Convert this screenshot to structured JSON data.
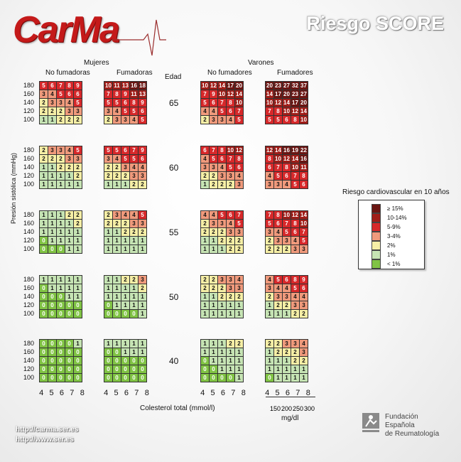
{
  "brand": {
    "logo_text": "CarMa"
  },
  "title": "Riesgo SCORE",
  "headers": {
    "women": "Mujeres",
    "men": "Varones",
    "nonsmokers": "No fumadoras",
    "smokers_f": "Fumadoras",
    "nonsmokers_m": "No fumadores",
    "smokers_m": "Fumadores",
    "age": "Edad"
  },
  "y_axis_label": "Presión sistólica (mmHg)",
  "x_axis_label": "Colesterol total (mmol/l)",
  "bp_labels": [
    "180",
    "160",
    "140",
    "120",
    "100"
  ],
  "chol_ticks": [
    "4",
    "5",
    "6",
    "7",
    "8"
  ],
  "mgdl_ticks": [
    "150",
    "200",
    "250",
    "300"
  ],
  "mgdl_unit": "mg/dl",
  "ages": [
    "65",
    "60",
    "55",
    "50",
    "40"
  ],
  "legend": {
    "title": "Riesgo cardiovascular en 10 años",
    "items": [
      {
        "label": "≥ 15%",
        "color": "#6b1512"
      },
      {
        "label": "10-14%",
        "color": "#a01d18"
      },
      {
        "label": "5-9%",
        "color": "#d7282a"
      },
      {
        "label": "3-4%",
        "color": "#f09a7c"
      },
      {
        "label": "2%",
        "color": "#f6efa6"
      },
      {
        "label": "1%",
        "color": "#c6e4b4"
      },
      {
        "label": "< 1%",
        "color": "#80c344"
      }
    ]
  },
  "grids": [
    [
      [
        5,
        6,
        7,
        8,
        9
      ],
      [
        3,
        4,
        5,
        6,
        6
      ],
      [
        2,
        3,
        3,
        4,
        5
      ],
      [
        2,
        2,
        2,
        3,
        3
      ],
      [
        1,
        1,
        2,
        2,
        2
      ]
    ],
    [
      [
        10,
        11,
        13,
        16,
        18
      ],
      [
        7,
        8,
        9,
        11,
        13
      ],
      [
        5,
        5,
        6,
        8,
        9
      ],
      [
        3,
        4,
        5,
        5,
        6
      ],
      [
        2,
        3,
        3,
        4,
        5
      ]
    ],
    [
      [
        10,
        12,
        14,
        17,
        20
      ],
      [
        7,
        9,
        10,
        12,
        14
      ],
      [
        5,
        6,
        7,
        8,
        10
      ],
      [
        4,
        4,
        5,
        6,
        7
      ],
      [
        2,
        3,
        3,
        4,
        5
      ]
    ],
    [
      [
        20,
        23,
        27,
        32,
        37
      ],
      [
        14,
        17,
        20,
        23,
        27
      ],
      [
        10,
        12,
        14,
        17,
        20
      ],
      [
        7,
        8,
        10,
        12,
        14
      ],
      [
        5,
        5,
        6,
        8,
        10
      ]
    ],
    [
      [
        2,
        3,
        3,
        4,
        5
      ],
      [
        2,
        2,
        2,
        3,
        3
      ],
      [
        1,
        1,
        2,
        2,
        2
      ],
      [
        1,
        1,
        1,
        1,
        2
      ],
      [
        1,
        1,
        1,
        1,
        1
      ]
    ],
    [
      [
        5,
        5,
        6,
        7,
        9
      ],
      [
        3,
        4,
        5,
        5,
        6
      ],
      [
        2,
        2,
        3,
        4,
        4
      ],
      [
        2,
        2,
        2,
        3,
        3
      ],
      [
        1,
        1,
        1,
        2,
        2
      ]
    ],
    [
      [
        6,
        7,
        8,
        10,
        12
      ],
      [
        4,
        5,
        6,
        7,
        8
      ],
      [
        3,
        3,
        4,
        5,
        6
      ],
      [
        2,
        2,
        3,
        3,
        4
      ],
      [
        1,
        2,
        2,
        2,
        3
      ]
    ],
    [
      [
        12,
        14,
        16,
        19,
        22
      ],
      [
        8,
        10,
        12,
        14,
        16
      ],
      [
        6,
        7,
        8,
        10,
        11
      ],
      [
        4,
        5,
        6,
        7,
        8
      ],
      [
        3,
        3,
        4,
        5,
        6
      ]
    ],
    [
      [
        1,
        1,
        1,
        2,
        2
      ],
      [
        1,
        1,
        1,
        1,
        2
      ],
      [
        1,
        1,
        1,
        1,
        1
      ],
      [
        0,
        1,
        1,
        1,
        1
      ],
      [
        0,
        0,
        0,
        1,
        1
      ]
    ],
    [
      [
        2,
        3,
        4,
        4,
        5
      ],
      [
        2,
        2,
        2,
        3,
        3
      ],
      [
        1,
        1,
        2,
        2,
        2
      ],
      [
        1,
        1,
        1,
        1,
        1
      ],
      [
        1,
        1,
        1,
        1,
        1
      ]
    ],
    [
      [
        4,
        4,
        5,
        6,
        7
      ],
      [
        2,
        3,
        3,
        4,
        5
      ],
      [
        2,
        2,
        2,
        3,
        3
      ],
      [
        1,
        1,
        2,
        2,
        2
      ],
      [
        1,
        1,
        1,
        2,
        2
      ]
    ],
    [
      [
        7,
        8,
        10,
        12,
        14
      ],
      [
        5,
        6,
        7,
        8,
        10
      ],
      [
        3,
        4,
        5,
        6,
        7
      ],
      [
        2,
        3,
        3,
        4,
        5
      ],
      [
        2,
        2,
        2,
        3,
        3
      ]
    ],
    [
      [
        1,
        1,
        1,
        1,
        1
      ],
      [
        0,
        1,
        1,
        1,
        1
      ],
      [
        0,
        0,
        0,
        1,
        1
      ],
      [
        0,
        0,
        0,
        0,
        0
      ],
      [
        0,
        0,
        0,
        0,
        0
      ]
    ],
    [
      [
        1,
        1,
        2,
        2,
        3
      ],
      [
        1,
        1,
        1,
        1,
        2
      ],
      [
        1,
        1,
        1,
        1,
        1
      ],
      [
        0,
        1,
        1,
        1,
        1
      ],
      [
        0,
        0,
        0,
        0,
        1
      ]
    ],
    [
      [
        2,
        2,
        3,
        3,
        4
      ],
      [
        2,
        2,
        2,
        3,
        3
      ],
      [
        1,
        1,
        2,
        2,
        2
      ],
      [
        1,
        1,
        1,
        1,
        1
      ],
      [
        1,
        1,
        1,
        1,
        1
      ]
    ],
    [
      [
        4,
        5,
        6,
        8,
        9
      ],
      [
        3,
        4,
        4,
        5,
        6
      ],
      [
        2,
        3,
        3,
        4,
        4
      ],
      [
        1,
        2,
        2,
        3,
        3
      ],
      [
        1,
        1,
        1,
        2,
        2
      ]
    ],
    [
      [
        0,
        0,
        0,
        0,
        1
      ],
      [
        0,
        0,
        0,
        0,
        0
      ],
      [
        0,
        0,
        0,
        0,
        0
      ],
      [
        0,
        0,
        0,
        0,
        0
      ],
      [
        0,
        0,
        0,
        0,
        0
      ]
    ],
    [
      [
        1,
        1,
        1,
        1,
        1
      ],
      [
        0,
        0,
        1,
        1,
        1
      ],
      [
        0,
        0,
        0,
        0,
        0
      ],
      [
        0,
        0,
        0,
        0,
        0
      ],
      [
        0,
        0,
        0,
        0,
        0
      ]
    ],
    [
      [
        1,
        1,
        1,
        2,
        2
      ],
      [
        1,
        1,
        1,
        1,
        1
      ],
      [
        0,
        1,
        1,
        1,
        1
      ],
      [
        0,
        0,
        1,
        1,
        1
      ],
      [
        0,
        0,
        0,
        0,
        1
      ]
    ],
    [
      [
        2,
        2,
        3,
        3,
        4
      ],
      [
        1,
        2,
        2,
        2,
        3
      ],
      [
        1,
        1,
        1,
        2,
        2
      ],
      [
        1,
        1,
        1,
        1,
        1
      ],
      [
        0,
        1,
        1,
        1,
        1
      ]
    ]
  ],
  "foundation": [
    "Fundación",
    "Española",
    "de Reumatología"
  ],
  "urls": [
    "http://carma.ser.es",
    "http://www.ser.es"
  ]
}
